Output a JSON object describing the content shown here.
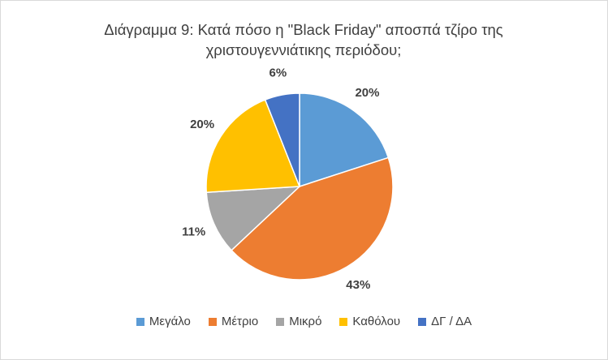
{
  "chart_data": {
    "type": "pie",
    "title": "Διάγραμμα 9: Κατά πόσο η \"Black Friday\" αποσπά τζίρο της χριστουγεννιάτικης περιόδου;",
    "categories": [
      "Μεγάλο",
      "Μέτριο",
      "Μικρό",
      "Καθόλου",
      "ΔΓ / ΔΑ"
    ],
    "values": [
      20,
      43,
      11,
      20,
      6
    ],
    "value_labels": [
      "20%",
      "43%",
      "11%",
      "20%",
      "6%"
    ],
    "colors": [
      "#5b9bd5",
      "#ed7d31",
      "#a5a5a5",
      "#ffc000",
      "#4472c4"
    ],
    "legend": "bottom"
  }
}
